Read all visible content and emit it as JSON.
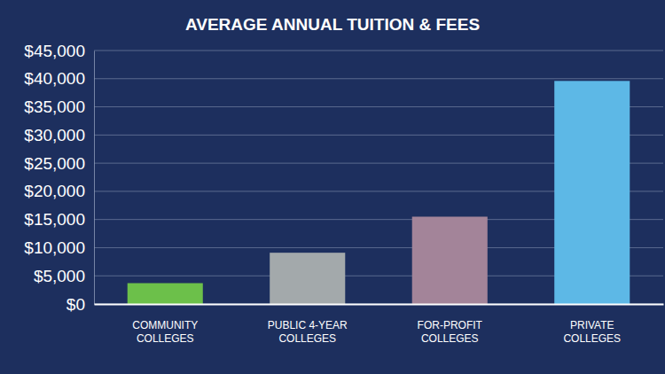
{
  "chart_data": {
    "type": "bar",
    "title": "AVERAGE ANNUAL TUITION & FEES",
    "categories": [
      "COMMUNITY COLLEGES",
      "PUBLIC 4-YEAR COLLEGES",
      "FOR-PROFIT COLLEGES",
      "PRIVATE COLLEGES"
    ],
    "values": [
      3700,
      9100,
      15500,
      39600
    ],
    "colors": [
      "#6cc04a",
      "#a3a9ab",
      "#a38499",
      "#5db8e6"
    ],
    "ylim": [
      0,
      45000
    ],
    "yticks": [
      {
        "value": 0,
        "label": "$0"
      },
      {
        "value": 5000,
        "label": "$5,000"
      },
      {
        "value": 10000,
        "label": "$10,000"
      },
      {
        "value": 15000,
        "label": "$15,000"
      },
      {
        "value": 20000,
        "label": "$20,000"
      },
      {
        "value": 25000,
        "label": "$25,000"
      },
      {
        "value": 30000,
        "label": "$30,000"
      },
      {
        "value": 35000,
        "label": "$35,000"
      },
      {
        "value": 40000,
        "label": "$40,000"
      },
      {
        "value": 45000,
        "label": "$45,000"
      }
    ],
    "grid": true
  }
}
